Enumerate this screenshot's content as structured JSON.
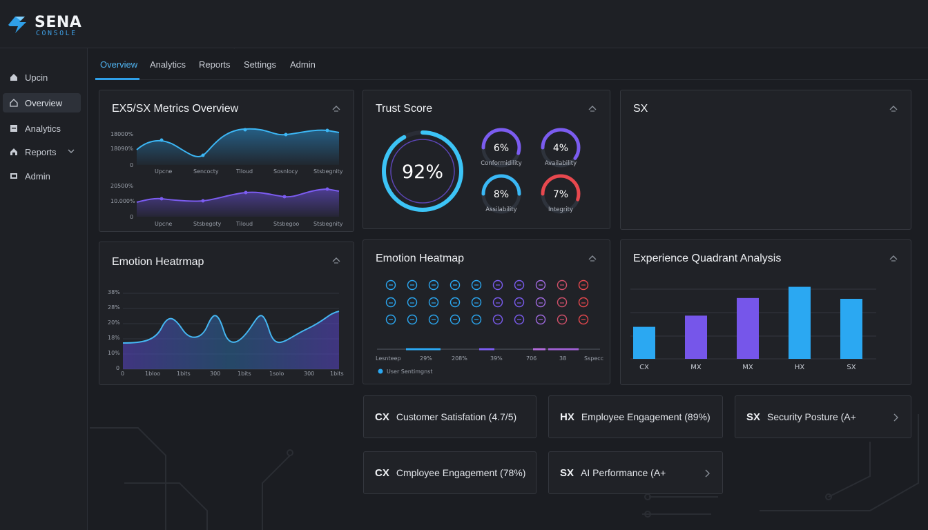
{
  "brand": {
    "name": "SENA",
    "sub": "CONSOLE"
  },
  "sidebar": {
    "items": [
      {
        "label": "Upcin",
        "icon": "home-icon"
      },
      {
        "label": "Overview",
        "icon": "home-outline-icon",
        "active": true
      },
      {
        "label": "Analytics",
        "icon": "analytics-icon"
      },
      {
        "label": "Reports",
        "icon": "reports-icon",
        "expandable": true
      },
      {
        "label": "Admin",
        "icon": "admin-icon"
      }
    ]
  },
  "tabs": [
    {
      "label": "Overview",
      "active": true
    },
    {
      "label": "Analytics"
    },
    {
      "label": "Reports"
    },
    {
      "label": "Settings"
    },
    {
      "label": "Admin"
    }
  ],
  "metrics_card": {
    "title": "EX5/SX Metrics Overview",
    "top_chart": {
      "y_ticks": [
        "18000%",
        "18090%",
        "0"
      ],
      "x_ticks": [
        "Upcne",
        "Sencocty",
        "Tiloud",
        "Sosnlocy",
        "Stsbegnity"
      ]
    },
    "bottom_chart": {
      "y_ticks": [
        "20500%",
        "10.000%",
        "0"
      ],
      "x_ticks": [
        "Upcne",
        "Stsbegoty",
        "Tiloud",
        "Stsbegoo",
        "Stsbegnity"
      ]
    }
  },
  "trust_card": {
    "title": "Trust Score",
    "score": "92%",
    "score_fraction": 0.92,
    "gauges": [
      {
        "value": "6%",
        "label": "Conformidility",
        "fraction": 0.55,
        "color": "#7b5cf0"
      },
      {
        "value": "4%",
        "label": "Availability",
        "fraction": 0.6,
        "color": "#7b5cf0"
      },
      {
        "value": "8%",
        "label": "Assilability",
        "fraction": 0.5,
        "color": "#3ab8f5"
      },
      {
        "value": "7%",
        "label": "Integrity",
        "fraction": 0.55,
        "color": "#e8484e"
      }
    ]
  },
  "sx_card": {
    "title": "SX"
  },
  "heatmap_left": {
    "title": "Emotion Heatrmap",
    "y_ticks": [
      "38%",
      "28%",
      "20%",
      "18%",
      "10%",
      "0"
    ],
    "x_ticks": [
      "0",
      "1bloo",
      "1bits",
      "300",
      "1bits",
      "1solo",
      "300",
      "1bits"
    ]
  },
  "heatmap_mid": {
    "title": "Emotion Heatmap",
    "scale_ticks": [
      "Lesnteep",
      "29%",
      "208%",
      "39%",
      "706",
      "38",
      "Sspecc"
    ],
    "legend": "User Sentimgnst"
  },
  "quadrant_card": {
    "title": "Experience Quadrant Analysis"
  },
  "chart_data": {
    "type": "bar",
    "categories": [
      "CX",
      "MX",
      "MX",
      "HX",
      "SX"
    ],
    "values": [
      40,
      54,
      76,
      90,
      75
    ],
    "ylim": [
      0,
      100
    ],
    "colors": [
      "#2ba8f2",
      "#7656ea",
      "#7656ea",
      "#2ba8f2",
      "#2ba8f2"
    ],
    "grid": true
  },
  "tiles": [
    {
      "code": "CX",
      "text": "Customer Satisfation (4.7/5)"
    },
    {
      "code": "HX",
      "text": "Employee Engagement (89%)"
    },
    {
      "code": "SX",
      "text": "Security Posture (A+"
    },
    {
      "code": "CX",
      "text": "Cmployee Engagement (78%)"
    },
    {
      "code": "SX",
      "text": "AI Performance (A+"
    }
  ],
  "colors": {
    "accent": "#2f9fe8",
    "purple": "#7656ea",
    "red": "#e8484e",
    "bg": "#1b1d22"
  }
}
